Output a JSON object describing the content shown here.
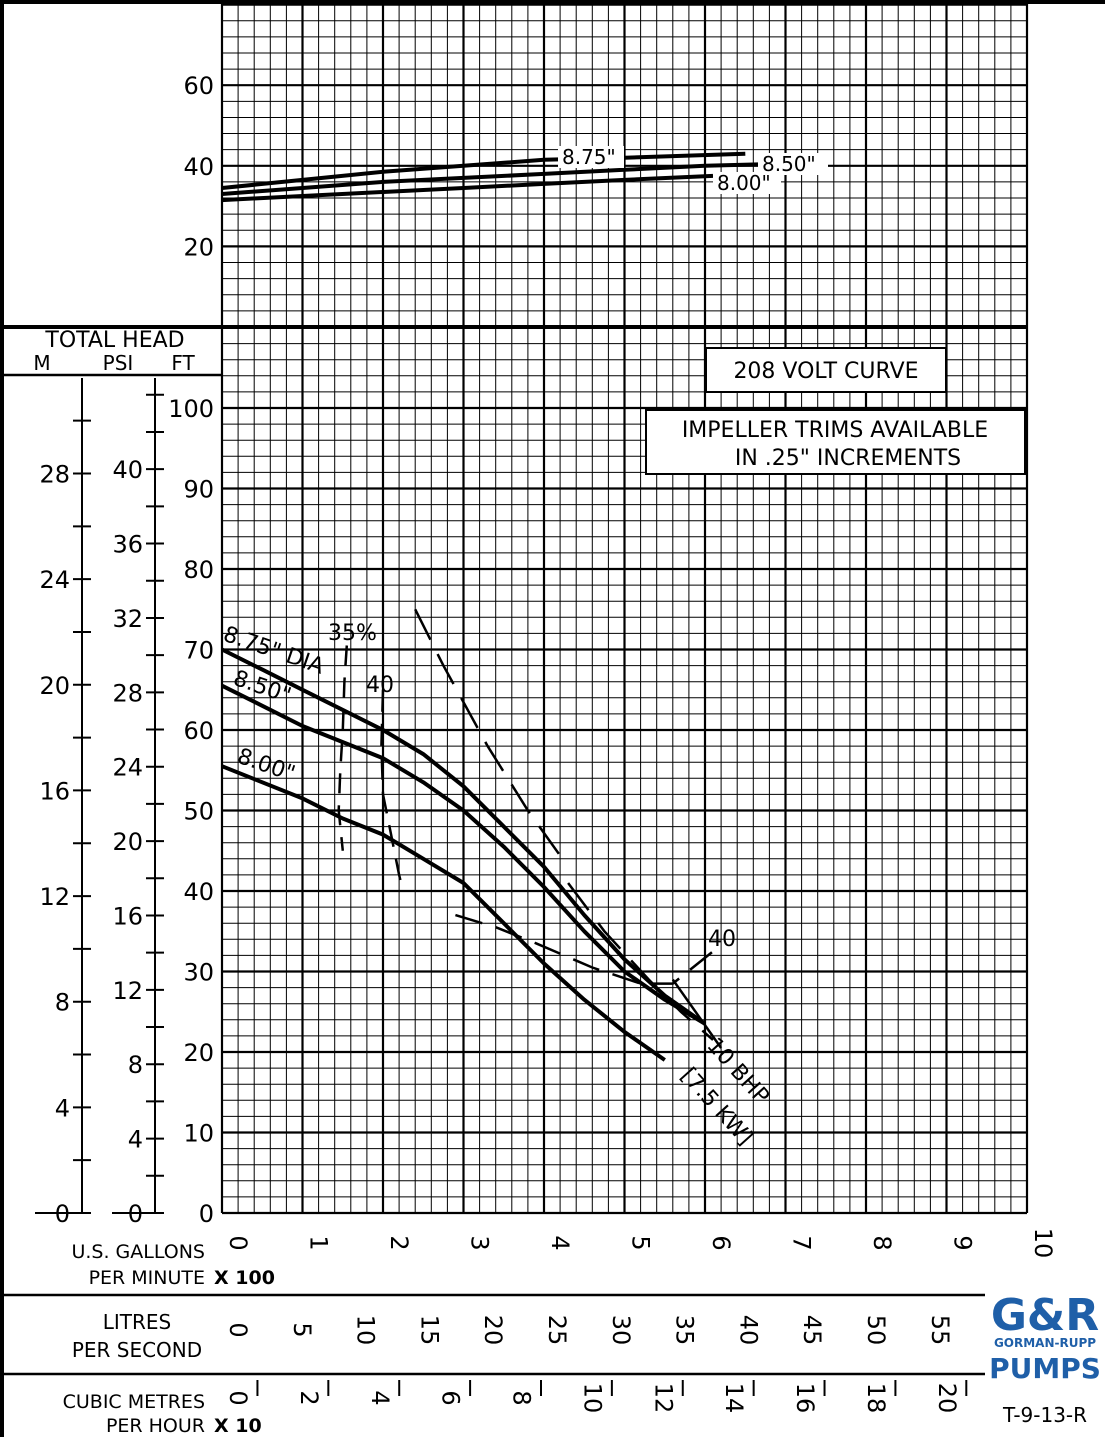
{
  "chart_data": {
    "type": "line",
    "drawing_number": "T-9-13-R",
    "brand": {
      "logo_letters": "G&R",
      "name_line": "GORMAN-RUPP",
      "product_line": "PUMPS",
      "colors": {
        "logo": "#1f5fa8",
        "lines": "#000000",
        "background": "#ffffff"
      }
    },
    "boxes": {
      "voltage": "208 VOLT CURVE",
      "trims_line1": "IMPELLER TRIMS AVAILABLE",
      "trims_line2": "IN .25\" INCREMENTS"
    },
    "x_axis": {
      "unit_main": "U.S. GALLONS",
      "unit_main_2": "PER MINUTE",
      "multiplier": "X 100",
      "range": [
        0,
        10
      ],
      "ticks": [
        "0",
        "1",
        "2",
        "3",
        "4",
        "5",
        "6",
        "7",
        "8",
        "9",
        "10"
      ]
    },
    "litres_axis": {
      "label_1": "LITRES",
      "label_2": "PER SECOND",
      "ticks": [
        "0",
        "5",
        "10",
        "15",
        "20",
        "25",
        "30",
        "35",
        "40",
        "45",
        "50",
        "55"
      ]
    },
    "cubic_axis": {
      "label_1": "CUBIC METRES",
      "label_2": "PER HOUR",
      "multiplier": "X 10",
      "ticks": [
        "0",
        "2",
        "4",
        "6",
        "8",
        "10",
        "12",
        "14",
        "16",
        "18",
        "20"
      ]
    },
    "head_axis": {
      "title": "TOTAL HEAD",
      "col_m": "M",
      "col_psi": "PSI",
      "col_ft": "FT",
      "ft_range": [
        0,
        125
      ],
      "ft_ticks": [
        "0",
        "10",
        "20",
        "30",
        "40",
        "50",
        "60",
        "70",
        "80",
        "90",
        "100"
      ],
      "m_ticks": [
        "0",
        "4",
        "8",
        "12",
        "16",
        "20",
        "24",
        "28"
      ],
      "psi_ticks": [
        "0",
        "4",
        "8",
        "12",
        "16",
        "20",
        "24",
        "28",
        "32",
        "36",
        "40"
      ]
    },
    "upper_axis": {
      "range": [
        0,
        80
      ],
      "ticks": [
        "20",
        "40",
        "60"
      ]
    },
    "head_curves": [
      {
        "name": "8.75\" DIA",
        "x": [
          0,
          0.5,
          1.0,
          1.5,
          2.0,
          2.5,
          3.0,
          3.5,
          4.0,
          4.5,
          5.0,
          5.5,
          6.0
        ],
        "y": [
          70,
          67.5,
          65,
          62.5,
          60,
          57,
          53,
          48,
          43,
          37,
          31.5,
          27,
          23.5
        ]
      },
      {
        "name": "8.50\"",
        "x": [
          0,
          0.5,
          1.0,
          1.5,
          2.0,
          2.5,
          3.0,
          3.5,
          4.0,
          4.5,
          5.0,
          5.5,
          6.0
        ],
        "y": [
          65.5,
          63,
          60.5,
          58.5,
          56.5,
          53.5,
          50,
          45.5,
          40.5,
          35,
          30,
          26.5,
          23.5
        ]
      },
      {
        "name": "8.00\"",
        "x": [
          0,
          0.5,
          1.0,
          1.5,
          2.0,
          2.5,
          3.0,
          3.5,
          4.0,
          4.5,
          5.0,
          5.5
        ],
        "y": [
          55.5,
          53.5,
          51.5,
          49,
          47,
          44,
          41,
          36,
          31,
          26.5,
          22.5,
          19
        ]
      }
    ],
    "efficiency_curves": [
      {
        "label": "35%",
        "x": [
          1.55,
          1.52,
          1.5,
          1.47,
          1.45,
          1.5
        ],
        "y": [
          70.5,
          66,
          60,
          55,
          50,
          45
        ],
        "dash": [
          20,
          12
        ]
      },
      {
        "label": "40",
        "x": [
          2.0,
          1.98,
          2.0,
          2.1,
          2.2,
          2.25
        ],
        "y": [
          65,
          58,
          52,
          47,
          42,
          40
        ],
        "dash": [
          22,
          12
        ]
      },
      {
        "label": "40",
        "x": [
          2.9,
          3.4,
          3.9,
          4.6,
          5.2,
          5.6,
          6.1
        ],
        "y": [
          37,
          35.5,
          33.5,
          30.5,
          28.5,
          28.5,
          32.5
        ],
        "dash": [
          28,
          14
        ]
      },
      {
        "label": "",
        "x": [
          2.4,
          2.75,
          3.3,
          3.8,
          4.3
        ],
        "y": [
          75,
          68,
          58,
          50,
          43
        ],
        "dash": [
          34,
          16
        ]
      },
      {
        "label": "",
        "x": [
          4.3,
          4.75,
          5.3,
          5.7,
          6.1
        ],
        "y": [
          41,
          35,
          29,
          25,
          21.5
        ],
        "dash": [
          34,
          16
        ]
      }
    ],
    "bhp_label": "10 BHP",
    "kw_label": "[7.5 KW]",
    "power_curves": [
      {
        "name": "8.75\"",
        "x": [
          0,
          1,
          2,
          3,
          4,
          5,
          6.5
        ],
        "y": [
          34.5,
          36.5,
          38.5,
          40,
          41.5,
          42,
          43
        ]
      },
      {
        "name": "8.50\"",
        "x": [
          0,
          1,
          2,
          3,
          4,
          5,
          6,
          6.9
        ],
        "y": [
          33,
          34.5,
          36,
          37,
          38,
          39,
          40,
          40.5
        ]
      },
      {
        "name": "8.00\"",
        "x": [
          0,
          1,
          2,
          3,
          4,
          5,
          6.1
        ],
        "y": [
          31.5,
          32.5,
          33.5,
          34.5,
          35.5,
          36.5,
          37.5
        ]
      }
    ]
  }
}
